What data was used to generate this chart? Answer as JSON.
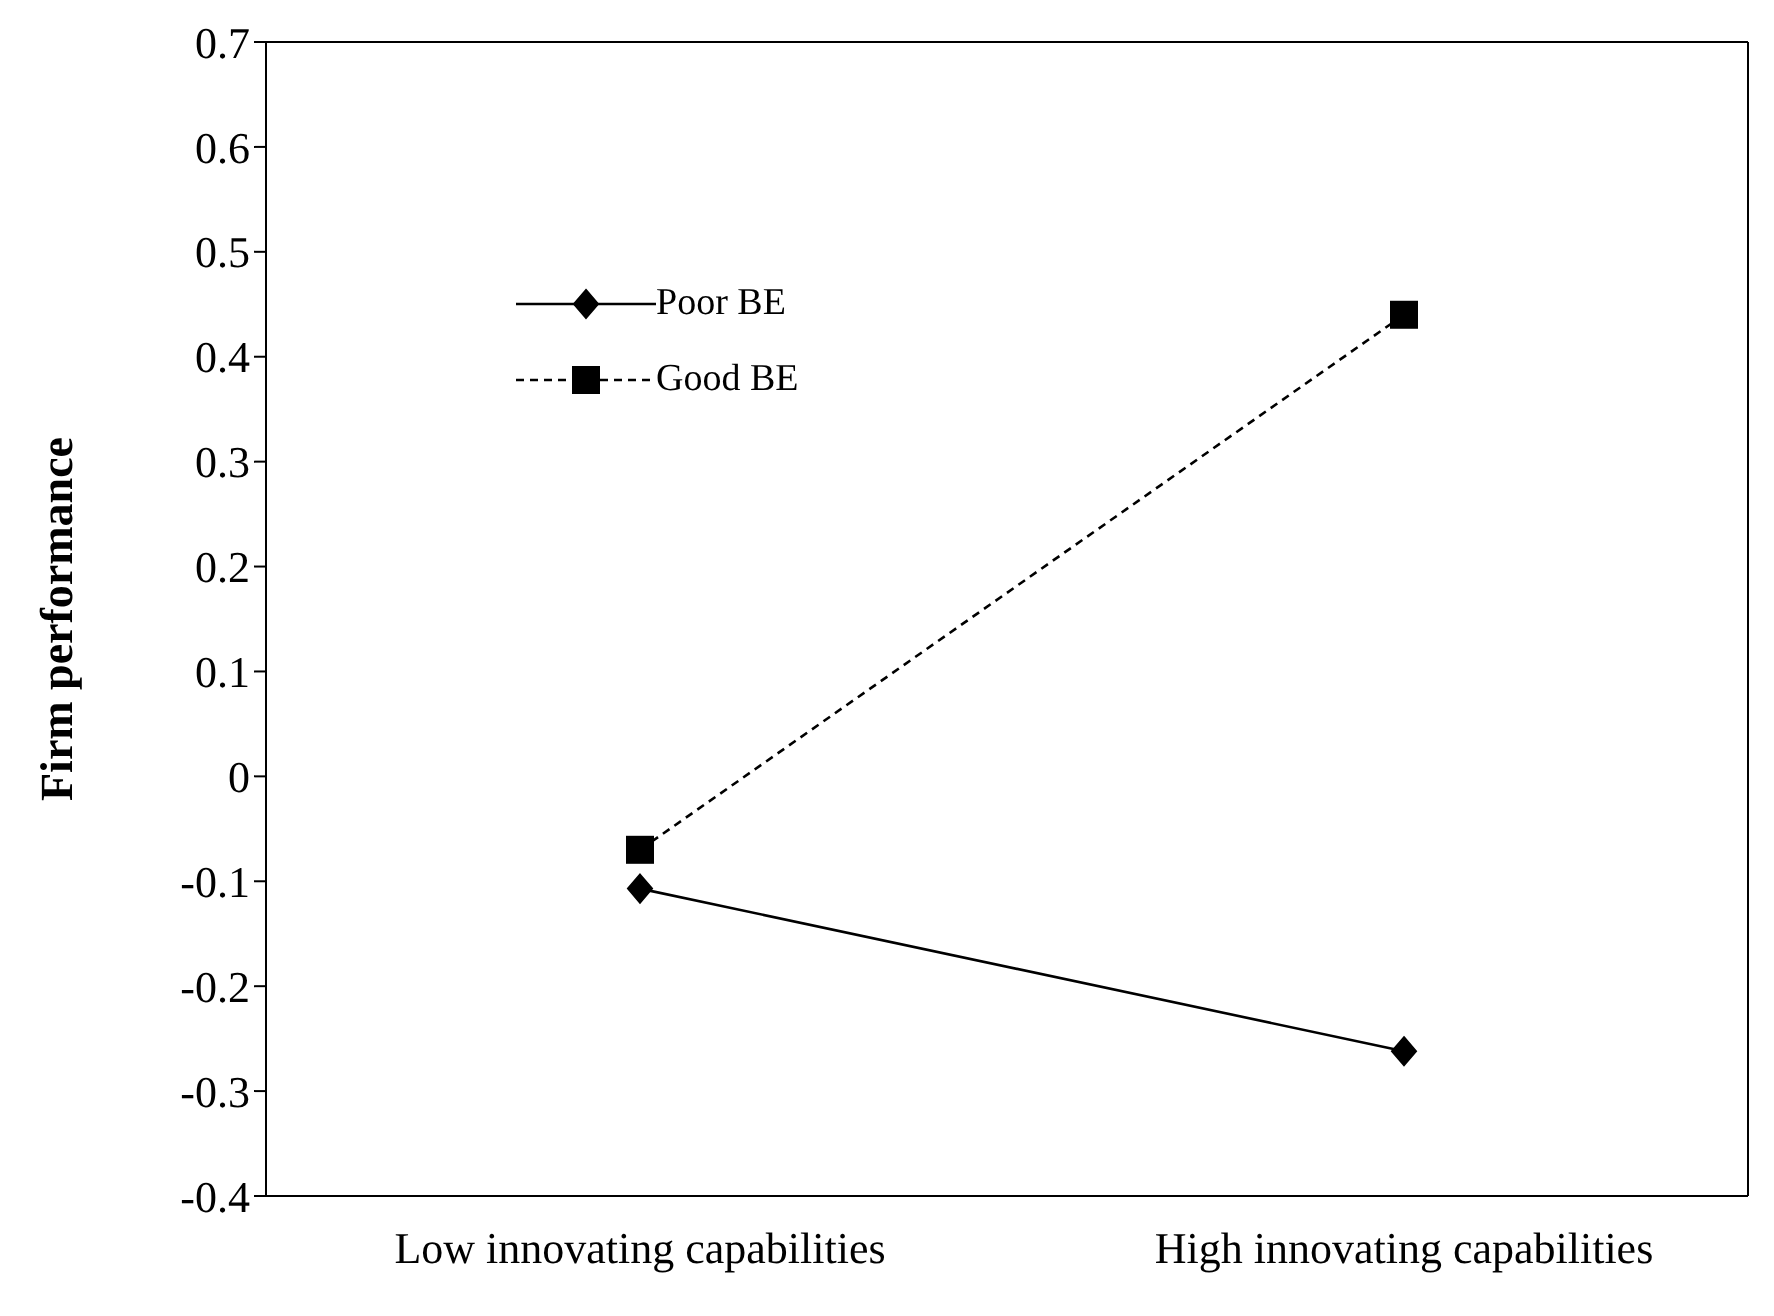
{
  "chart_data": {
    "type": "line",
    "ylabel": "Firm performance",
    "categories": [
      "Low innovating capabilities",
      "High innovating capabilities"
    ],
    "series": [
      {
        "name": "Poor BE",
        "color": "#000000",
        "values": [
          -0.107,
          -0.262
        ],
        "marker": "diamond",
        "line_style": "solid"
      },
      {
        "name": "Good BE",
        "color": "#000000",
        "values": [
          -0.07,
          0.44
        ],
        "marker": "square",
        "line_style": "dashed"
      }
    ],
    "ylim": [
      -0.4,
      0.7
    ],
    "yticks": [
      -0.4,
      -0.3,
      -0.2,
      -0.1,
      0,
      0.1,
      0.2,
      0.3,
      0.4,
      0.5,
      0.6,
      0.7
    ],
    "grid": false,
    "legend": "top left"
  }
}
